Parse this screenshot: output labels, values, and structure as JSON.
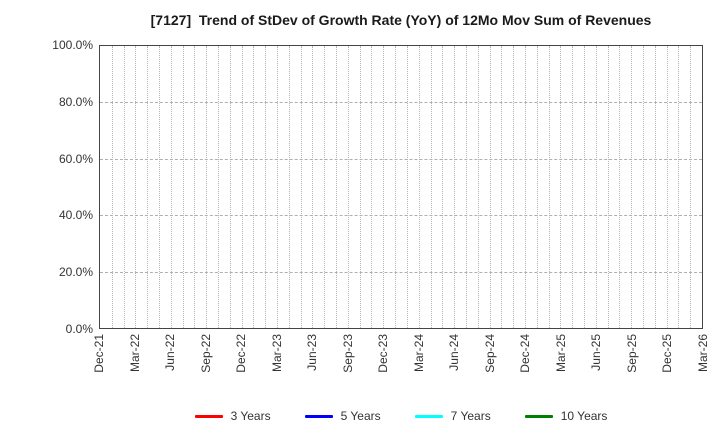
{
  "chart_data": {
    "type": "line",
    "title": "[7127]  Trend of StDev of Growth Rate (YoY) of 12Mo Mov Sum of Revenues",
    "x_tick_labels": [
      "Dec-21",
      "Mar-22",
      "Jun-22",
      "Sep-22",
      "Dec-22",
      "Mar-23",
      "Jun-23",
      "Sep-23",
      "Dec-23",
      "Mar-24",
      "Jun-24",
      "Sep-24",
      "Dec-24",
      "Mar-25",
      "Jun-25",
      "Sep-25",
      "Dec-25",
      "Mar-26"
    ],
    "x_minor_per_major": 3,
    "xlim": [
      "Dec-21",
      "Mar-26"
    ],
    "y_tick_labels": [
      "0.0%",
      "20.0%",
      "40.0%",
      "60.0%",
      "80.0%",
      "100.0%"
    ],
    "ylim": [
      0,
      100
    ],
    "grid": {
      "vertical": "dotted, every month",
      "horizontal": "dashed, every 20%"
    },
    "legend_position": "bottom",
    "series": [
      {
        "name": "3 Years",
        "color": "#ff0000",
        "values": []
      },
      {
        "name": "5 Years",
        "color": "#0000ff",
        "values": []
      },
      {
        "name": "7 Years",
        "color": "#00ffff",
        "values": []
      },
      {
        "name": "10 Years",
        "color": "#008000",
        "values": []
      }
    ],
    "plot_colors": {
      "frame": "#444444",
      "grid": "#b5b5b5",
      "tick_text": "#333333",
      "title_text": "#1a1a1a",
      "background": "#ffffff"
    }
  }
}
